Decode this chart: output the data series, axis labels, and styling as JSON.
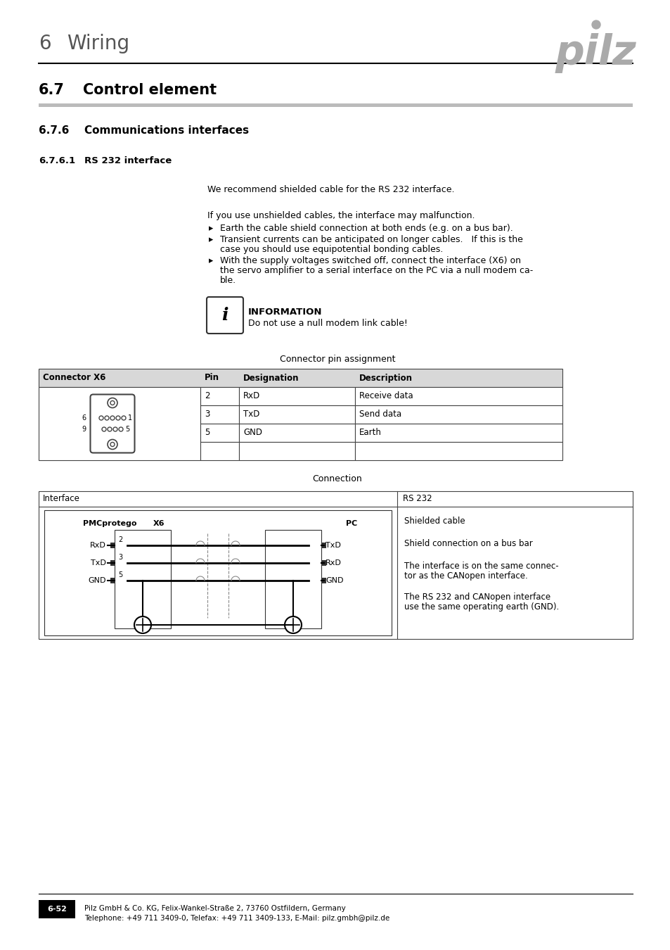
{
  "page_title_num": "6",
  "page_title_text": "Wiring",
  "section_num": "6.7",
  "section_title": "Control element",
  "subsection_num": "6.7.6",
  "subsection_title": "Communications interfaces",
  "subsubsection_num": "6.7.6.1",
  "subsubsection_title": "RS 232 interface",
  "para1": "We recommend shielded cable for the RS 232 interface.",
  "para2": "If you use unshielded cables, the interface may malfunction.",
  "bullet1": "Earth the cable shield connection at both ends (e.g. on a bus bar).",
  "bullet2_1": "Transient currents can be anticipated on longer cables.   If this is the",
  "bullet2_2": "case you should use equipotential bonding cables.",
  "bullet3_1": "With the supply voltages switched off, connect the interface (X6) on",
  "bullet3_2": "the servo amplifier to a serial interface on the PC via a null modem ca-",
  "bullet3_3": "ble.",
  "info_title": "INFORMATION",
  "info_text": "Do not use a null modem link cable!",
  "connector_label": "Connector pin assignment",
  "table_col1": "Connector X6",
  "table_col2": "Pin",
  "table_col3": "Designation",
  "table_col4": "Description",
  "table_rows": [
    [
      "2",
      "RxD",
      "Receive data"
    ],
    [
      "3",
      "TxD",
      "Send data"
    ],
    [
      "5",
      "GND",
      "Earth"
    ],
    [
      "",
      "",
      ""
    ]
  ],
  "connection_label": "Connection",
  "conn_interface": "Interface",
  "conn_rs232": "RS 232",
  "conn_pmcprotego": "PMCprotego",
  "conn_x6": "X6",
  "conn_pc": "PC",
  "conn_rxd_left": "RxD",
  "conn_txd_left": "TxD",
  "conn_gnd_left": "GND",
  "conn_txd_right": "TxD",
  "conn_rxd_right": "RxD",
  "conn_gnd_right": "GND",
  "conn_pin2": "2",
  "conn_pin3": "3",
  "conn_pin5": "5",
  "conn_info1": "Shielded cable",
  "conn_info2": "Shield connection on a bus bar",
  "conn_info3_1": "The interface is on the same connec-",
  "conn_info3_2": "tor as the CANopen interface.",
  "conn_info4_1": "The RS 232 and CANopen interface",
  "conn_info4_2": "use the same operating earth (GND).",
  "footer_page": "6-52",
  "footer_text1": "Pilz GmbH & Co. KG, Felix-Wankel-Straße 2, 73760 Ostfildern, Germany",
  "footer_text2": "Telephone: +49 711 3409-0, Telefax: +49 711 3409-133, E-Mail: pilz.gmbh@pilz.de"
}
